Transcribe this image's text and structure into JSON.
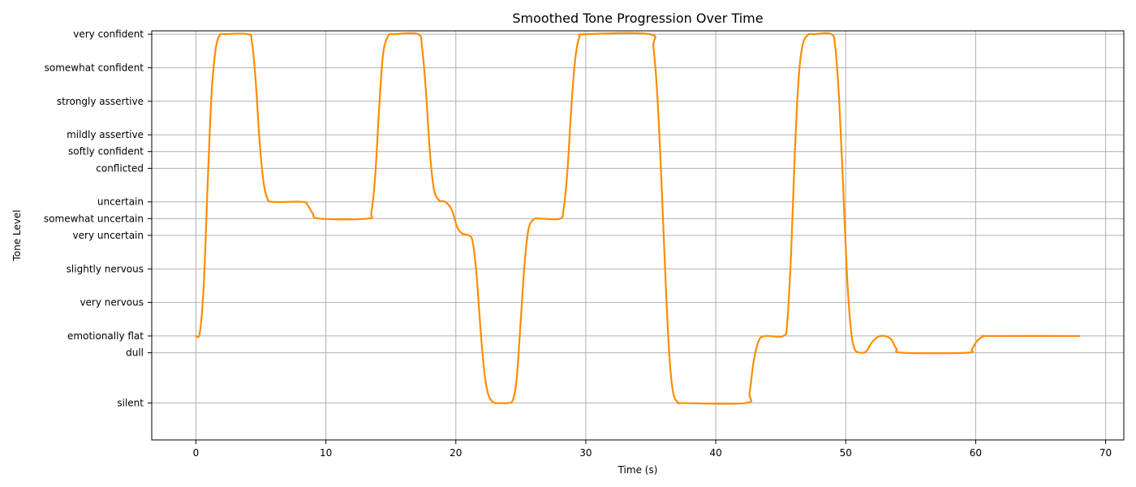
{
  "chart_data": {
    "type": "line",
    "title": "Smoothed Tone Progression Over Time",
    "xlabel": "Time (s)",
    "ylabel": "Tone Level",
    "xlim": [
      -3.4,
      71.4
    ],
    "ylim": [
      -1.1,
      11.1
    ],
    "grid": true,
    "x_ticks": [
      0,
      10,
      20,
      30,
      40,
      50,
      60,
      70
    ],
    "y_ticks": [
      {
        "value": 0,
        "label": "silent"
      },
      {
        "value": 1.5,
        "label": "dull"
      },
      {
        "value": 2,
        "label": "emotionally flat"
      },
      {
        "value": 3,
        "label": "very nervous"
      },
      {
        "value": 4,
        "label": "slightly nervous"
      },
      {
        "value": 5,
        "label": "very uncertain"
      },
      {
        "value": 5.5,
        "label": "somewhat uncertain"
      },
      {
        "value": 6,
        "label": "uncertain"
      },
      {
        "value": 7,
        "label": "conflicted"
      },
      {
        "value": 7.5,
        "label": "softly confident"
      },
      {
        "value": 8,
        "label": "mildly assertive"
      },
      {
        "value": 9,
        "label": "strongly assertive"
      },
      {
        "value": 10,
        "label": "somewhat confident"
      },
      {
        "value": 11,
        "label": "very confident"
      }
    ],
    "series": [
      {
        "color": "#ff8c00",
        "points": [
          [
            0,
            2
          ],
          [
            0.3,
            2.1
          ],
          [
            0.6,
            3.5
          ],
          [
            0.9,
            6.5
          ],
          [
            1.2,
            9.2
          ],
          [
            1.5,
            10.5
          ],
          [
            1.8,
            10.95
          ],
          [
            2.2,
            11
          ],
          [
            4.0,
            11
          ],
          [
            4.3,
            10.8
          ],
          [
            4.6,
            9.6
          ],
          [
            4.9,
            7.8
          ],
          [
            5.2,
            6.6
          ],
          [
            5.5,
            6.1
          ],
          [
            5.9,
            6
          ],
          [
            8.2,
            6
          ],
          [
            8.6,
            5.9
          ],
          [
            9.0,
            5.65
          ],
          [
            9.5,
            5.5
          ],
          [
            13.2,
            5.5
          ],
          [
            13.5,
            5.7
          ],
          [
            13.8,
            6.8
          ],
          [
            14.1,
            8.8
          ],
          [
            14.4,
            10.4
          ],
          [
            14.8,
            10.95
          ],
          [
            15.3,
            11
          ],
          [
            17.1,
            11
          ],
          [
            17.4,
            10.6
          ],
          [
            17.7,
            9.3
          ],
          [
            18.0,
            7.5
          ],
          [
            18.3,
            6.4
          ],
          [
            18.7,
            6.05
          ],
          [
            19.2,
            6
          ],
          [
            19.7,
            5.75
          ],
          [
            20.1,
            5.25
          ],
          [
            20.5,
            5.05
          ],
          [
            21.0,
            5
          ],
          [
            21.3,
            4.8
          ],
          [
            21.6,
            3.8
          ],
          [
            21.9,
            2.2
          ],
          [
            22.2,
            0.9
          ],
          [
            22.5,
            0.25
          ],
          [
            22.9,
            0.02
          ],
          [
            23.4,
            0
          ],
          [
            24.0,
            0
          ],
          [
            24.4,
            0.1
          ],
          [
            24.7,
            0.8
          ],
          [
            25.0,
            2.5
          ],
          [
            25.3,
            4.2
          ],
          [
            25.6,
            5.2
          ],
          [
            26.0,
            5.48
          ],
          [
            26.5,
            5.5
          ],
          [
            28.0,
            5.5
          ],
          [
            28.3,
            5.8
          ],
          [
            28.6,
            7.0
          ],
          [
            28.9,
            8.9
          ],
          [
            29.2,
            10.3
          ],
          [
            29.5,
            10.9
          ],
          [
            30.0,
            11
          ],
          [
            34.9,
            11
          ],
          [
            35.2,
            10.6
          ],
          [
            35.5,
            9.2
          ],
          [
            35.8,
            6.8
          ],
          [
            36.1,
            4.0
          ],
          [
            36.4,
            1.6
          ],
          [
            36.7,
            0.35
          ],
          [
            37.1,
            0.02
          ],
          [
            37.6,
            0
          ],
          [
            42.3,
            0
          ],
          [
            42.6,
            0.3
          ],
          [
            42.9,
            1.2
          ],
          [
            43.3,
            1.85
          ],
          [
            43.8,
            2
          ],
          [
            45.2,
            2
          ],
          [
            45.5,
            2.4
          ],
          [
            45.8,
            4.5
          ],
          [
            46.1,
            7.6
          ],
          [
            46.4,
            9.8
          ],
          [
            46.7,
            10.7
          ],
          [
            47.1,
            10.98
          ],
          [
            47.6,
            11
          ],
          [
            48.9,
            11
          ],
          [
            49.2,
            10.6
          ],
          [
            49.5,
            9.0
          ],
          [
            49.8,
            6.5
          ],
          [
            50.1,
            3.8
          ],
          [
            50.4,
            2.2
          ],
          [
            50.7,
            1.6
          ],
          [
            51.2,
            1.5
          ],
          [
            51.6,
            1.55
          ],
          [
            52.0,
            1.8
          ],
          [
            52.5,
            1.98
          ],
          [
            53.0,
            2
          ],
          [
            53.5,
            1.9
          ],
          [
            53.9,
            1.62
          ],
          [
            54.4,
            1.5
          ],
          [
            59.3,
            1.5
          ],
          [
            59.7,
            1.6
          ],
          [
            60.1,
            1.85
          ],
          [
            60.6,
            1.99
          ],
          [
            61.2,
            2
          ],
          [
            68,
            2
          ]
        ]
      }
    ]
  }
}
